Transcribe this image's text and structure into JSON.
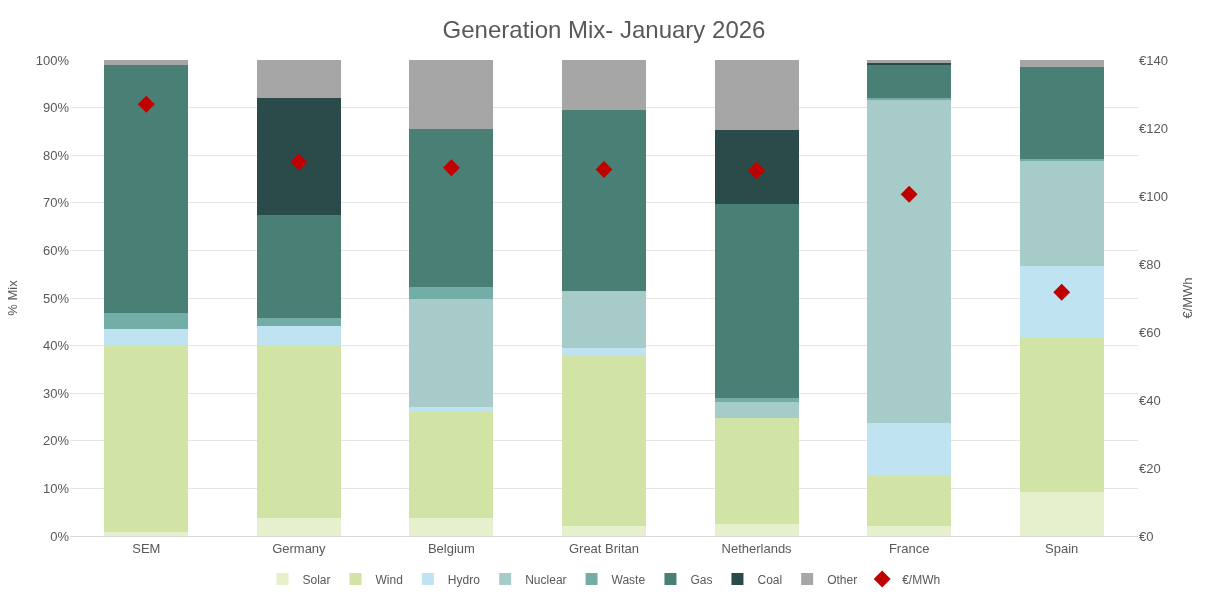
{
  "chart_data": {
    "type": "bar",
    "stacked": true,
    "title": "Generation Mix- January 2026",
    "ylabel": "% Mix",
    "y2label": "€/MWh",
    "categories": [
      "SEM",
      "Germany",
      "Belgium",
      "Great Britan",
      "Netherlands",
      "France",
      "Spain"
    ],
    "series": [
      {
        "name": "Solar",
        "color": "#e6f0cc",
        "values": [
          0.8,
          3.7,
          3.7,
          2.0,
          2.5,
          2.0,
          9.2
        ]
      },
      {
        "name": "Wind",
        "color": "#d1e3a5",
        "values": [
          39.4,
          36.5,
          22.5,
          36.0,
          22.3,
          10.6,
          32.5
        ]
      },
      {
        "name": "Hydro",
        "color": "#c0e3f2",
        "values": [
          3.2,
          3.9,
          1.0,
          1.5,
          0,
          11.1,
          15.0
        ]
      },
      {
        "name": "Nuclear",
        "color": "#a6cbc8",
        "values": [
          0,
          0,
          22.6,
          11.9,
          3.4,
          67.9,
          22.0
        ]
      },
      {
        "name": "Waste",
        "color": "#72aea7",
        "values": [
          3.4,
          1.6,
          2.6,
          null,
          0.8,
          0.5,
          0.5
        ]
      },
      {
        "name": "Gas",
        "color": "#4a7f76",
        "values": [
          52.1,
          21.7,
          33.2,
          38.0,
          40.8,
          6.9,
          19.3
        ]
      },
      {
        "name": "Coal",
        "color": "#2b4b4a",
        "values": [
          0,
          24.6,
          0,
          0,
          15.5,
          0.4,
          0
        ]
      },
      {
        "name": "Other",
        "color": "#a6a6a6",
        "values": [
          1.1,
          8.0,
          14.4,
          10.6,
          14.7,
          0.6,
          1.5
        ]
      },
      {
        "name": "€/MWh",
        "color": "#c00000",
        "type": "scatter",
        "axis": "y2",
        "marker": "diamond",
        "values": [
          127,
          110,
          108.3,
          107.8,
          107.5,
          100.5,
          71.7
        ]
      }
    ],
    "ylim": [
      0,
      100
    ],
    "yticks": [
      {
        "value": 0,
        "label": "0%"
      },
      {
        "value": 10,
        "label": "10%"
      },
      {
        "value": 20,
        "label": "20%"
      },
      {
        "value": 30,
        "label": "30%"
      },
      {
        "value": 40,
        "label": "40%"
      },
      {
        "value": 50,
        "label": "50%"
      },
      {
        "value": 60,
        "label": "60%"
      },
      {
        "value": 70,
        "label": "70%"
      },
      {
        "value": 80,
        "label": "80%"
      },
      {
        "value": 90,
        "label": "90%"
      },
      {
        "value": 100,
        "label": "100%"
      }
    ],
    "y2lim": [
      0,
      140
    ],
    "y2ticks": [
      {
        "value": 0,
        "label": "€0"
      },
      {
        "value": 20,
        "label": "€20"
      },
      {
        "value": 40,
        "label": "€40"
      },
      {
        "value": 60,
        "label": "€60"
      },
      {
        "value": 80,
        "label": "€80"
      },
      {
        "value": 100,
        "label": "€100"
      },
      {
        "value": 120,
        "label": "€120"
      },
      {
        "value": 140,
        "label": "€140"
      }
    ],
    "grid": "y",
    "legend": "bottom"
  }
}
